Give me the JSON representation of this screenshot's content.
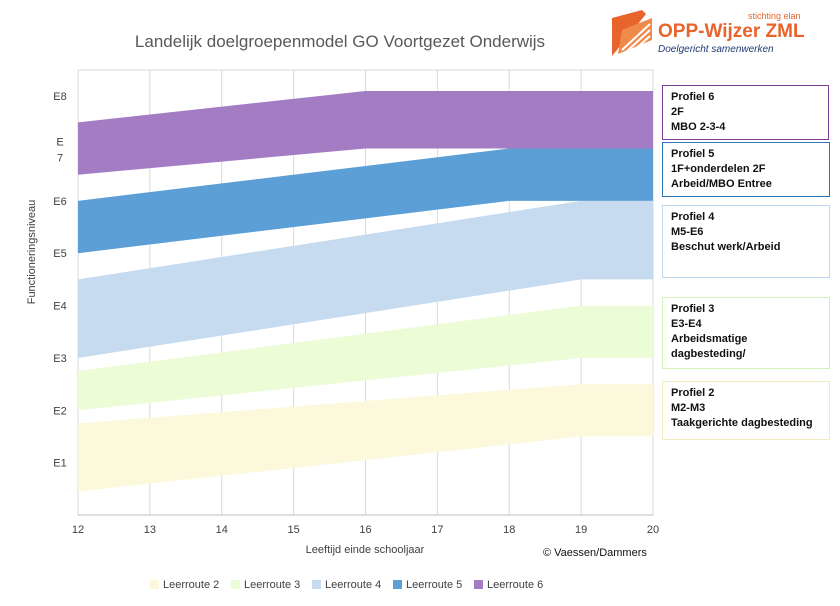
{
  "chart_data": {
    "type": "area",
    "title": "Landelijk doelgroepenmodel GO Voortgezet Onderwijs",
    "xlabel": "Leeftijd einde schooljaar",
    "ylabel": "Functioneringsniveau",
    "x": [
      12,
      13,
      14,
      15,
      16,
      17,
      18,
      19,
      20
    ],
    "xlim": [
      12,
      20
    ],
    "ylim": [
      0,
      8.5
    ],
    "y_ticks": [
      {
        "value": 1,
        "label": "E1"
      },
      {
        "value": 2,
        "label": "E2"
      },
      {
        "value": 3,
        "label": "E3"
      },
      {
        "value": 4,
        "label": "E4"
      },
      {
        "value": 5,
        "label": "E5"
      },
      {
        "value": 6,
        "label": "E6"
      },
      {
        "value": 7,
        "label": "E\n7"
      },
      {
        "value": 8,
        "label": "E8"
      }
    ],
    "grid": true,
    "series": [
      {
        "name": "Leerroute 2",
        "color": "#fcf8dc",
        "points": [
          [
            12,
            0.45,
            1.75
          ],
          [
            19,
            1.5,
            2.5
          ],
          [
            20,
            1.5,
            2.5
          ]
        ]
      },
      {
        "name": "Leerroute 3",
        "color": "#ebfcd6",
        "points": [
          [
            12,
            2.0,
            2.75
          ],
          [
            19,
            3.0,
            4.0
          ],
          [
            20,
            3.0,
            4.0
          ]
        ]
      },
      {
        "name": "Leerroute 4",
        "color": "#c6dbef",
        "points": [
          [
            12,
            3.0,
            4.5
          ],
          [
            19,
            4.5,
            6.0
          ],
          [
            20,
            4.5,
            6.0
          ]
        ]
      },
      {
        "name": "Leerroute 5",
        "color": "#5b9fd6",
        "points": [
          [
            12,
            5.0,
            6.0
          ],
          [
            18,
            6.0,
            7.0
          ],
          [
            20,
            6.0,
            7.0
          ]
        ]
      },
      {
        "name": "Leerroute 6",
        "color": "#a47cc4",
        "points": [
          [
            12,
            6.5,
            7.5
          ],
          [
            16,
            7.0,
            8.1
          ],
          [
            20,
            7.0,
            8.1
          ]
        ]
      }
    ]
  },
  "profiles": [
    {
      "lines": [
        "Profiel 6",
        "2F",
        "MBO 2-3-4"
      ],
      "border": "#7b3c91"
    },
    {
      "lines": [
        "Profiel 5",
        "1F+onderdelen 2F",
        "Arbeid/MBO Entree"
      ],
      "border": "#2e75b6"
    },
    {
      "lines": [
        "Profiel 4",
        "M5-E6",
        "Beschut werk/Arbeid"
      ],
      "border": "#bdd7ee"
    },
    {
      "lines": [
        "Profiel 3",
        "E3-E4",
        "Arbeidsmatige",
        "dagbesteding/"
      ],
      "border": "#d5f0b8"
    },
    {
      "lines": [
        "Profiel 2",
        "M2-M3",
        "Taakgerichte dagbesteding"
      ],
      "border": "#f3ecc0"
    }
  ],
  "logo": {
    "stichting": "stichting elan",
    "brand": "OPP-Wijzer ZML",
    "tagline": "Doelgericht samenwerken",
    "color": "#e8642c"
  },
  "copyright": "© Vaessen/Dammers"
}
